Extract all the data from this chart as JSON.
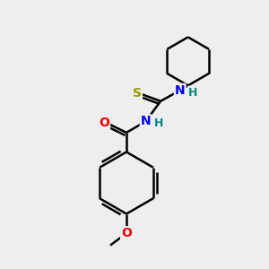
{
  "background_color": "#eeeeee",
  "bond_color": "#000000",
  "atom_colors": {
    "S": "#999900",
    "N": "#0000ee",
    "O": "#ee0000",
    "H": "#008888",
    "C": "#000000"
  },
  "bond_width": 1.8,
  "figsize": [
    3.0,
    3.0
  ],
  "dpi": 100
}
